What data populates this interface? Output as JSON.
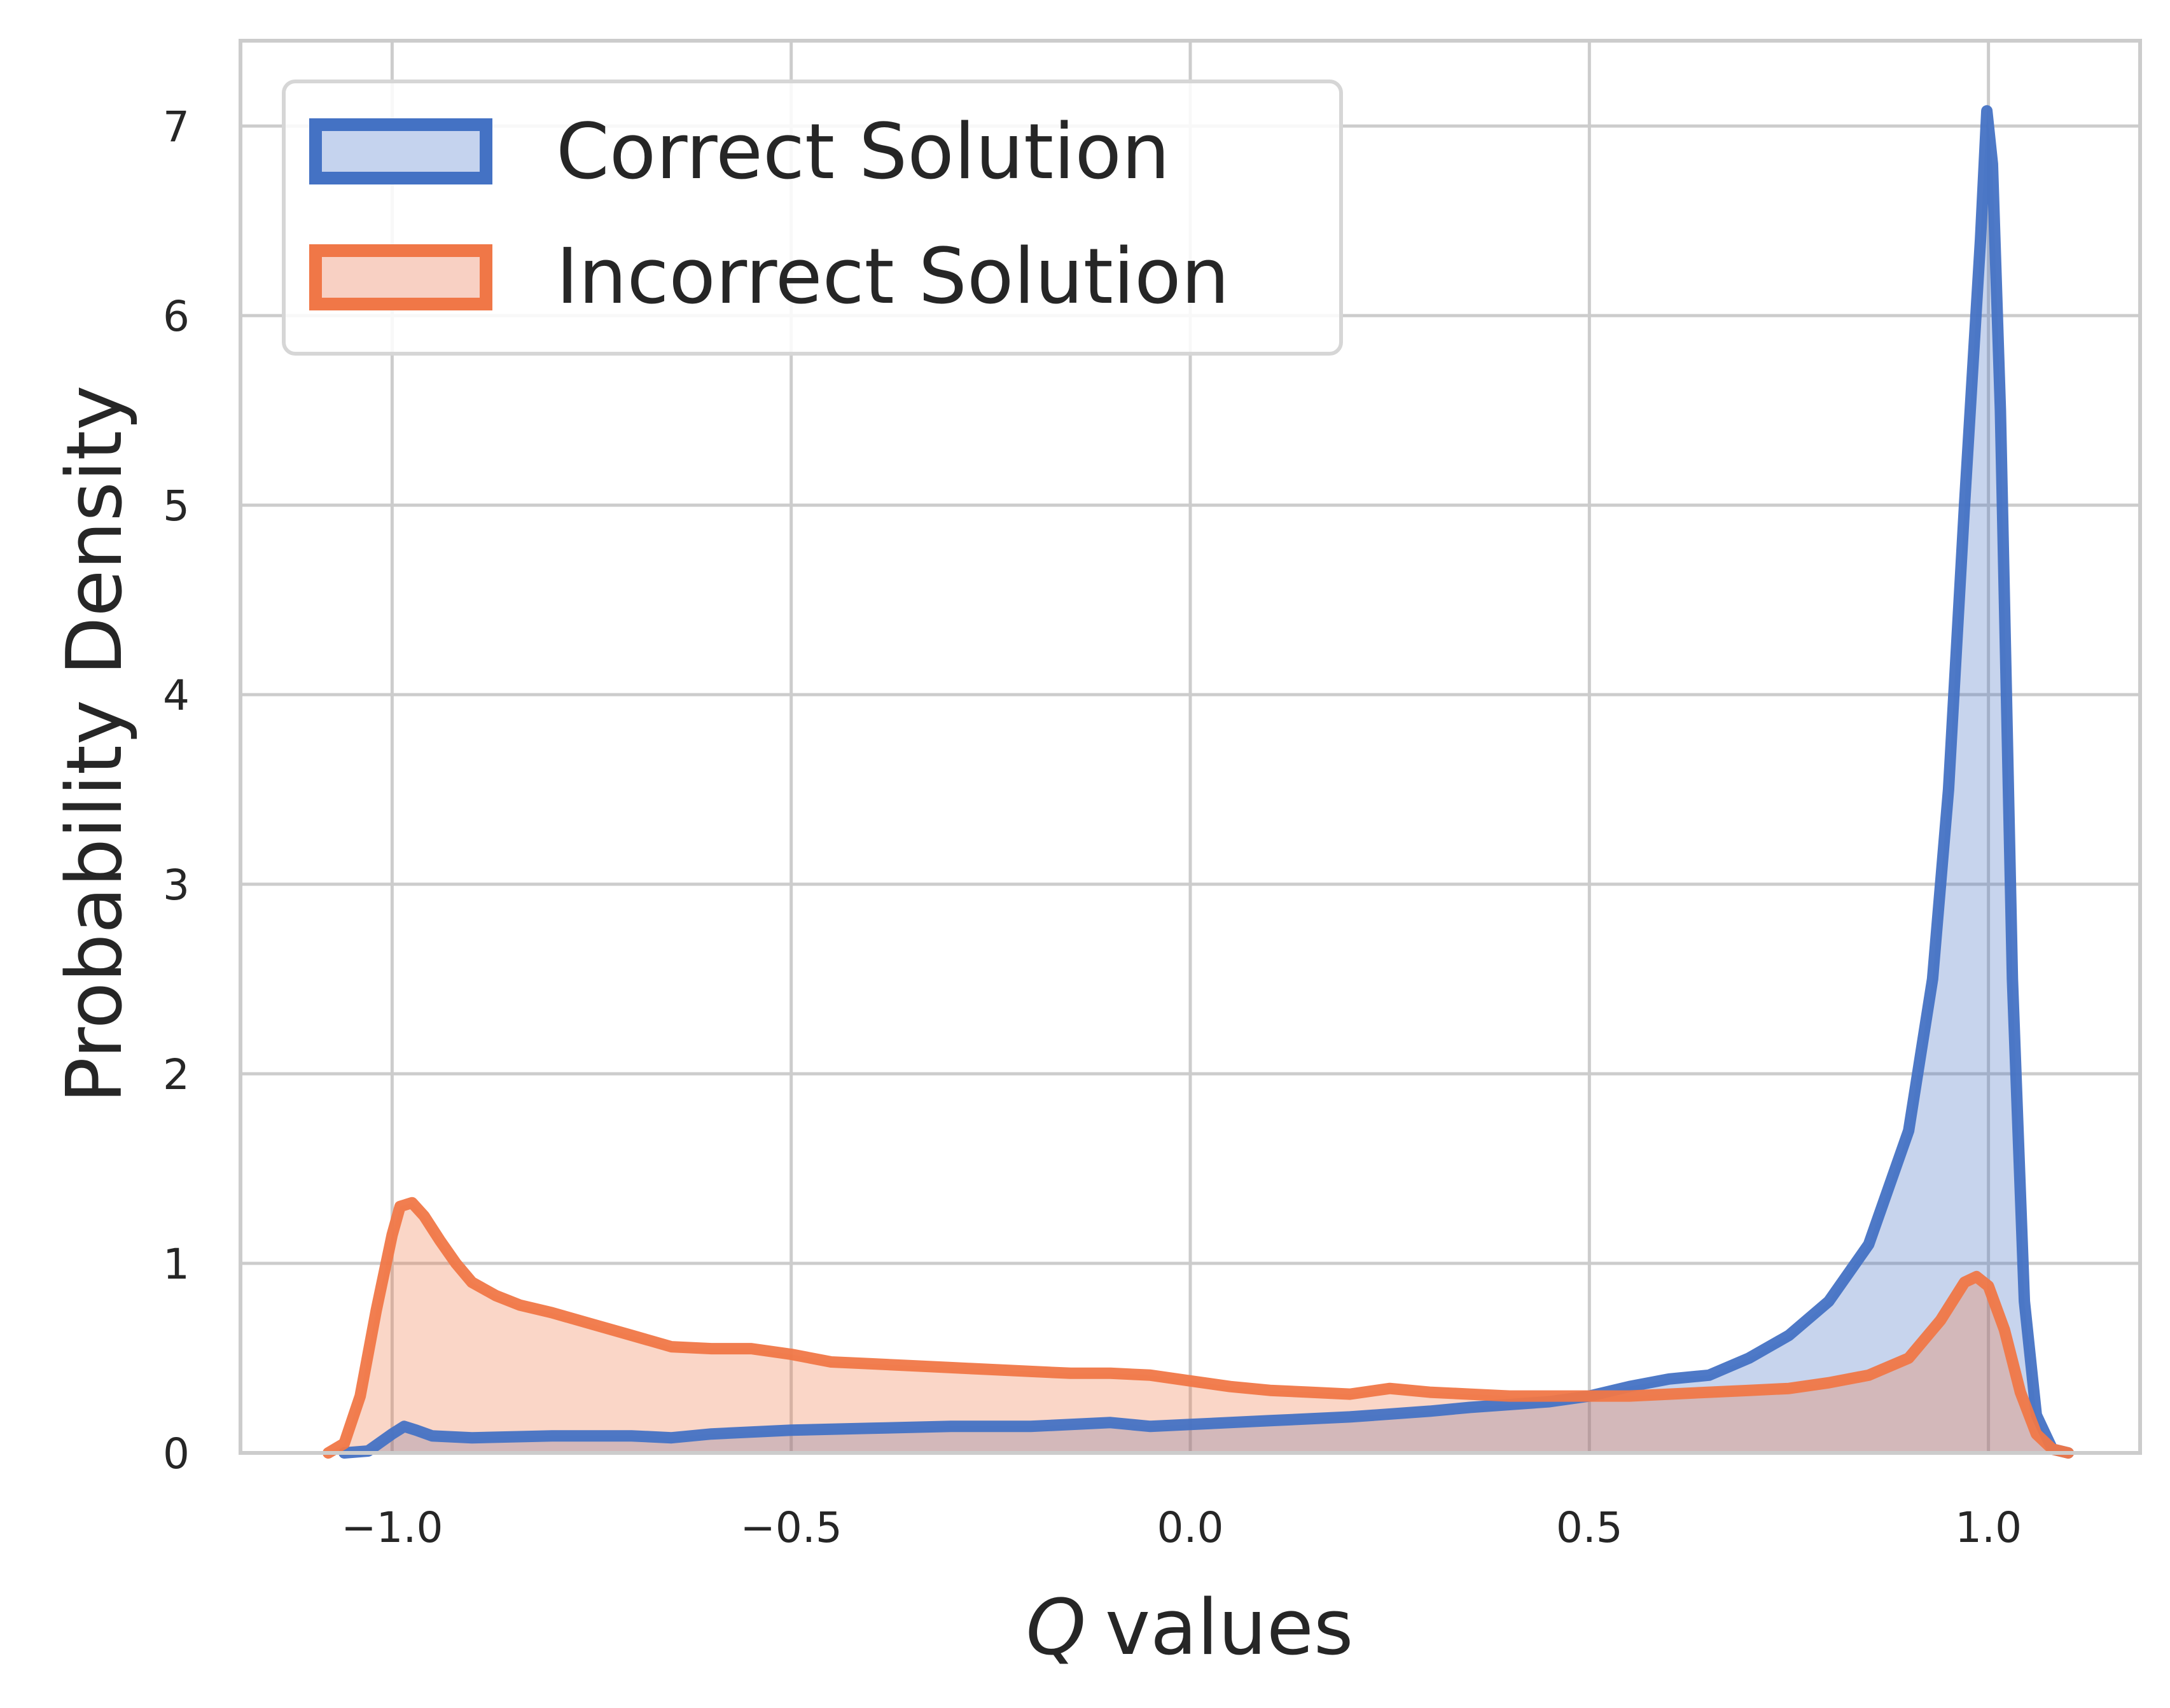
{
  "chart_data": {
    "type": "area",
    "xlabel": "values",
    "xlabel_symbol": "Q",
    "ylabel": "Probability Density",
    "xlim": [
      -1.19,
      1.19
    ],
    "ylim": [
      0,
      7.45
    ],
    "xticks": [
      -1.0,
      -0.5,
      0.0,
      0.5,
      1.0
    ],
    "xtick_labels": [
      "−1.0",
      "−0.5",
      "0.0",
      "0.5",
      "1.0"
    ],
    "yticks": [
      0,
      1,
      2,
      3,
      4,
      5,
      6,
      7
    ],
    "ytick_labels": [
      "0",
      "1",
      "2",
      "3",
      "4",
      "5",
      "6",
      "7"
    ],
    "grid": true,
    "legend_position": "top-left",
    "series": [
      {
        "name": "Correct Solution",
        "color": "#4472C4",
        "fill": "#C5D3EE",
        "points": [
          [
            -1.06,
            0.0
          ],
          [
            -1.03,
            0.01
          ],
          [
            -1.0,
            0.1
          ],
          [
            -0.985,
            0.14
          ],
          [
            -0.97,
            0.12
          ],
          [
            -0.95,
            0.09
          ],
          [
            -0.9,
            0.08
          ],
          [
            -0.8,
            0.09
          ],
          [
            -0.7,
            0.09
          ],
          [
            -0.65,
            0.08
          ],
          [
            -0.6,
            0.1
          ],
          [
            -0.5,
            0.12
          ],
          [
            -0.4,
            0.13
          ],
          [
            -0.3,
            0.14
          ],
          [
            -0.2,
            0.14
          ],
          [
            -0.1,
            0.16
          ],
          [
            -0.05,
            0.14
          ],
          [
            0.0,
            0.15
          ],
          [
            0.1,
            0.17
          ],
          [
            0.2,
            0.19
          ],
          [
            0.3,
            0.22
          ],
          [
            0.35,
            0.24
          ],
          [
            0.45,
            0.27
          ],
          [
            0.5,
            0.3
          ],
          [
            0.55,
            0.35
          ],
          [
            0.6,
            0.39
          ],
          [
            0.65,
            0.41
          ],
          [
            0.7,
            0.5
          ],
          [
            0.75,
            0.62
          ],
          [
            0.8,
            0.8
          ],
          [
            0.85,
            1.1
          ],
          [
            0.9,
            1.7
          ],
          [
            0.93,
            2.5
          ],
          [
            0.95,
            3.5
          ],
          [
            0.97,
            5.0
          ],
          [
            0.99,
            6.4
          ],
          [
            0.998,
            7.08
          ],
          [
            1.005,
            6.8
          ],
          [
            1.015,
            5.5
          ],
          [
            1.03,
            2.5
          ],
          [
            1.045,
            0.8
          ],
          [
            1.06,
            0.2
          ],
          [
            1.08,
            0.02
          ],
          [
            1.1,
            0.0
          ]
        ]
      },
      {
        "name": "Incorrect Solution",
        "color": "#F07747",
        "fill": "#F8D0C3",
        "points": [
          [
            -1.08,
            0.0
          ],
          [
            -1.06,
            0.05
          ],
          [
            -1.04,
            0.3
          ],
          [
            -1.02,
            0.75
          ],
          [
            -1.0,
            1.15
          ],
          [
            -0.99,
            1.3
          ],
          [
            -0.975,
            1.32
          ],
          [
            -0.96,
            1.25
          ],
          [
            -0.94,
            1.12
          ],
          [
            -0.92,
            1.0
          ],
          [
            -0.9,
            0.9
          ],
          [
            -0.87,
            0.83
          ],
          [
            -0.84,
            0.78
          ],
          [
            -0.8,
            0.74
          ],
          [
            -0.75,
            0.68
          ],
          [
            -0.7,
            0.62
          ],
          [
            -0.65,
            0.56
          ],
          [
            -0.6,
            0.55
          ],
          [
            -0.55,
            0.55
          ],
          [
            -0.5,
            0.52
          ],
          [
            -0.45,
            0.48
          ],
          [
            -0.4,
            0.47
          ],
          [
            -0.35,
            0.46
          ],
          [
            -0.3,
            0.45
          ],
          [
            -0.25,
            0.44
          ],
          [
            -0.2,
            0.43
          ],
          [
            -0.15,
            0.42
          ],
          [
            -0.1,
            0.42
          ],
          [
            -0.05,
            0.41
          ],
          [
            0.0,
            0.38
          ],
          [
            0.05,
            0.35
          ],
          [
            0.1,
            0.33
          ],
          [
            0.15,
            0.32
          ],
          [
            0.2,
            0.31
          ],
          [
            0.25,
            0.34
          ],
          [
            0.3,
            0.32
          ],
          [
            0.35,
            0.31
          ],
          [
            0.4,
            0.3
          ],
          [
            0.45,
            0.3
          ],
          [
            0.5,
            0.3
          ],
          [
            0.55,
            0.3
          ],
          [
            0.6,
            0.31
          ],
          [
            0.65,
            0.32
          ],
          [
            0.7,
            0.33
          ],
          [
            0.75,
            0.34
          ],
          [
            0.8,
            0.37
          ],
          [
            0.85,
            0.41
          ],
          [
            0.9,
            0.5
          ],
          [
            0.94,
            0.7
          ],
          [
            0.97,
            0.9
          ],
          [
            0.985,
            0.93
          ],
          [
            1.0,
            0.88
          ],
          [
            1.02,
            0.65
          ],
          [
            1.04,
            0.32
          ],
          [
            1.06,
            0.1
          ],
          [
            1.08,
            0.02
          ],
          [
            1.1,
            0.0
          ]
        ]
      }
    ]
  }
}
